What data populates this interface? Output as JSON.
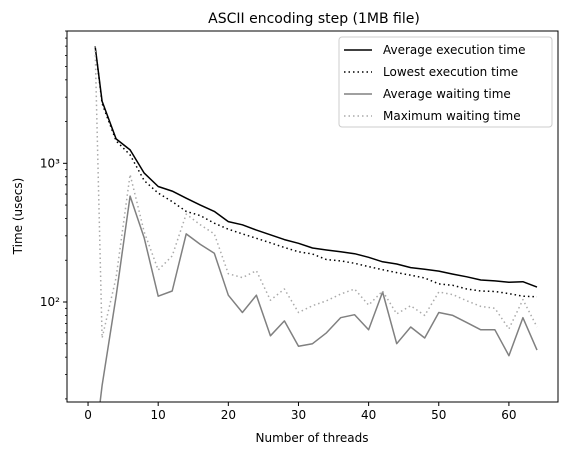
{
  "chart_data": {
    "type": "line",
    "title": "ASCII encoding step (1MB file)",
    "xlabel": "Number of threads",
    "ylabel": "Time (usecs)",
    "xlim": [
      -3,
      67
    ],
    "ylim": [
      19,
      9000
    ],
    "yscale": "log",
    "xticks": [
      0,
      10,
      20,
      30,
      40,
      50,
      60
    ],
    "yticks": [
      {
        "value": 100,
        "label": "10²"
      },
      {
        "value": 1000,
        "label": "10³"
      }
    ],
    "legend_position": "top-right",
    "x": [
      1,
      2,
      4,
      6,
      8,
      10,
      12,
      14,
      16,
      18,
      20,
      22,
      24,
      26,
      28,
      30,
      32,
      34,
      36,
      38,
      40,
      42,
      44,
      46,
      48,
      50,
      52,
      54,
      56,
      58,
      60,
      62,
      64
    ],
    "series": [
      {
        "name": "Average execution time",
        "color": "#000000",
        "style": "solid",
        "values": [
          7000,
          2800,
          1500,
          1250,
          850,
          680,
          630,
          560,
          500,
          450,
          380,
          360,
          330,
          305,
          282,
          265,
          245,
          237,
          230,
          223,
          210,
          195,
          188,
          177,
          172,
          167,
          159,
          152,
          144,
          142,
          139,
          140,
          128
        ]
      },
      {
        "name": "Lowest execution time",
        "color": "#000000",
        "style": "dotted",
        "values": [
          7000,
          2700,
          1450,
          1150,
          750,
          610,
          530,
          450,
          420,
          370,
          335,
          310,
          288,
          267,
          247,
          230,
          222,
          202,
          198,
          190,
          180,
          171,
          163,
          156,
          149,
          135,
          132,
          124,
          120,
          119,
          115,
          110,
          109
        ]
      },
      {
        "name": "Average waiting time",
        "color": "#808080",
        "style": "solid",
        "values": [
          0,
          25,
          110,
          580,
          290,
          110,
          120,
          310,
          260,
          225,
          112,
          84,
          112,
          57,
          73,
          48,
          50,
          60,
          77,
          81,
          63,
          118,
          50,
          66,
          55,
          84,
          80,
          71,
          63,
          63,
          41,
          77,
          45
        ]
      },
      {
        "name": "Maximum waiting time",
        "color": "#aaaaaa",
        "style": "dotted",
        "values": [
          7000,
          55,
          150,
          830,
          320,
          170,
          215,
          430,
          360,
          310,
          160,
          150,
          168,
          103,
          124,
          84,
          94,
          102,
          114,
          124,
          95,
          120,
          82,
          94,
          80,
          118,
          113,
          102,
          93,
          90,
          64,
          104,
          66
        ]
      }
    ]
  }
}
